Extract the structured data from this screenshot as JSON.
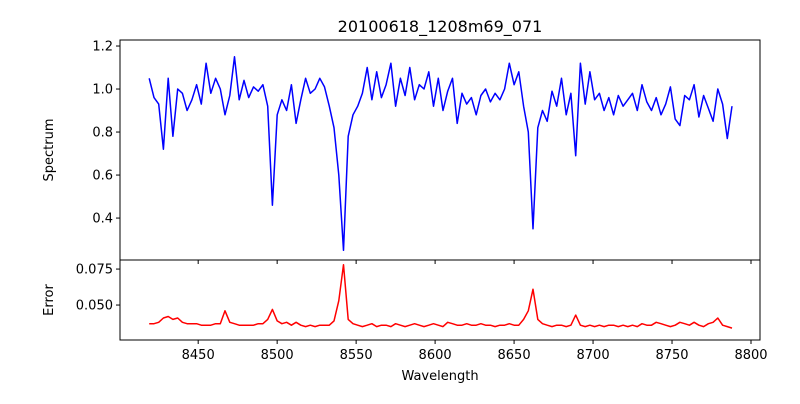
{
  "chart_data": [
    {
      "type": "line",
      "title": "20100618_1208m69_071",
      "xlabel": "",
      "ylabel": "Spectrum",
      "xlim": [
        8400.5,
        8805.7
      ],
      "ylim": [
        0.205,
        1.228
      ],
      "yticks": [
        "0.4",
        "0.6",
        "0.8",
        "1.0",
        "1.2"
      ],
      "ytick_values": [
        0.4,
        0.6,
        0.8,
        1.0,
        1.2
      ],
      "grid": false,
      "color": "#0000ff",
      "x_start": 8419,
      "x_step": 3,
      "values": [
        1.05,
        0.96,
        0.93,
        0.72,
        1.05,
        0.78,
        1.0,
        0.98,
        0.9,
        0.95,
        1.02,
        0.93,
        1.12,
        0.98,
        1.05,
        1.0,
        0.88,
        0.97,
        1.15,
        0.95,
        1.04,
        0.96,
        1.01,
        0.99,
        1.02,
        0.92,
        0.46,
        0.88,
        0.95,
        0.9,
        1.02,
        0.84,
        0.95,
        1.05,
        0.98,
        1.0,
        1.05,
        1.01,
        0.92,
        0.82,
        0.6,
        0.25,
        0.78,
        0.88,
        0.92,
        0.98,
        1.1,
        0.95,
        1.08,
        0.96,
        1.02,
        1.12,
        0.92,
        1.05,
        0.97,
        1.1,
        0.95,
        1.02,
        1.0,
        1.08,
        0.92,
        1.05,
        0.9,
        0.99,
        1.05,
        0.84,
        0.98,
        0.93,
        0.96,
        0.88,
        0.97,
        1.0,
        0.94,
        0.98,
        0.95,
        1.0,
        1.12,
        1.02,
        1.08,
        0.92,
        0.8,
        0.35,
        0.82,
        0.9,
        0.85,
        0.99,
        0.92,
        1.05,
        0.88,
        0.98,
        0.69,
        1.12,
        0.93,
        1.08,
        0.95,
        0.98,
        0.9,
        0.96,
        0.88,
        0.97,
        0.92,
        0.95,
        0.98,
        0.9,
        1.02,
        0.94,
        0.9,
        0.96,
        0.88,
        0.93,
        1.01,
        0.86,
        0.83,
        0.97,
        0.95,
        1.02,
        0.87,
        0.97,
        0.91,
        0.85,
        1.0,
        0.93,
        0.77,
        0.92
      ]
    },
    {
      "type": "line",
      "title": "",
      "xlabel": "Wavelength",
      "ylabel": "Error",
      "xlim": [
        8400.5,
        8805.7
      ],
      "ylim": [
        0.0257,
        0.0813
      ],
      "xticks": [
        "8450",
        "8500",
        "8550",
        "8600",
        "8650",
        "8700",
        "8750",
        "8800"
      ],
      "xtick_values": [
        8450,
        8500,
        8550,
        8600,
        8650,
        8700,
        8750,
        8800
      ],
      "yticks": [
        "0.050",
        "0.075"
      ],
      "ytick_values": [
        0.05,
        0.075
      ],
      "grid": false,
      "color": "#ff0000",
      "x_start": 8419,
      "x_step": 3,
      "values": [
        0.037,
        0.037,
        0.038,
        0.041,
        0.042,
        0.04,
        0.041,
        0.038,
        0.037,
        0.037,
        0.037,
        0.036,
        0.036,
        0.036,
        0.037,
        0.037,
        0.046,
        0.038,
        0.037,
        0.036,
        0.036,
        0.036,
        0.036,
        0.037,
        0.037,
        0.04,
        0.047,
        0.039,
        0.037,
        0.038,
        0.036,
        0.038,
        0.036,
        0.035,
        0.036,
        0.035,
        0.036,
        0.036,
        0.036,
        0.039,
        0.053,
        0.078,
        0.04,
        0.037,
        0.036,
        0.035,
        0.036,
        0.037,
        0.035,
        0.036,
        0.036,
        0.035,
        0.037,
        0.036,
        0.035,
        0.036,
        0.037,
        0.036,
        0.035,
        0.036,
        0.037,
        0.036,
        0.035,
        0.038,
        0.037,
        0.036,
        0.036,
        0.037,
        0.036,
        0.036,
        0.037,
        0.036,
        0.036,
        0.035,
        0.036,
        0.036,
        0.037,
        0.036,
        0.036,
        0.04,
        0.046,
        0.061,
        0.04,
        0.037,
        0.036,
        0.035,
        0.036,
        0.036,
        0.035,
        0.036,
        0.043,
        0.036,
        0.035,
        0.036,
        0.035,
        0.036,
        0.035,
        0.036,
        0.036,
        0.035,
        0.036,
        0.035,
        0.036,
        0.035,
        0.037,
        0.036,
        0.036,
        0.038,
        0.037,
        0.036,
        0.035,
        0.036,
        0.038,
        0.037,
        0.036,
        0.038,
        0.036,
        0.035,
        0.037,
        0.038,
        0.041,
        0.036,
        0.035,
        0.034
      ]
    }
  ]
}
